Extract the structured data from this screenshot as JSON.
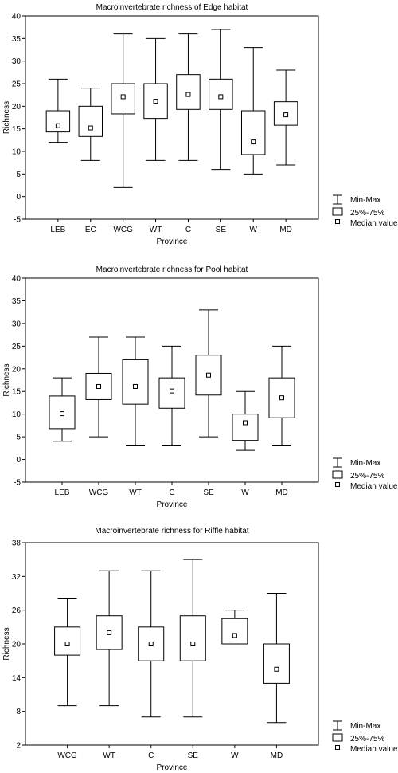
{
  "legend": {
    "minmax": "Min-Max",
    "iqr": "25%-75%",
    "median": "Median value"
  },
  "chart_data": [
    {
      "type": "box",
      "title": "Macroinvertebrate richness of Edge habitat",
      "xlabel": "Province",
      "ylabel": "Richness",
      "ylim": [
        -5,
        40
      ],
      "yticks": [
        -5,
        0,
        5,
        10,
        15,
        20,
        25,
        30,
        35,
        40
      ],
      "legend_position": "right-bottom",
      "grid": false,
      "categories": [
        "LEB",
        "EC",
        "WCG",
        "WT",
        "C",
        "SE",
        "W",
        "MD"
      ],
      "min": [
        12,
        8,
        2,
        8,
        8,
        6,
        5,
        7
      ],
      "q1": [
        14.3,
        13.3,
        18.3,
        17.3,
        19.3,
        19.3,
        9.3,
        15.8
      ],
      "median": [
        15.7,
        15.2,
        22.1,
        21.1,
        22.6,
        22.1,
        12.1,
        18.1
      ],
      "q3": [
        19,
        20,
        25,
        25,
        27,
        26,
        19,
        21
      ],
      "max": [
        26,
        24,
        36,
        35,
        36,
        37,
        33,
        28
      ]
    },
    {
      "type": "box",
      "title": "Macroinvertebrate richness for Pool habitat",
      "xlabel": "Province",
      "ylabel": "Richness",
      "ylim": [
        -5,
        40
      ],
      "yticks": [
        -5,
        0,
        5,
        10,
        15,
        20,
        25,
        30,
        35,
        40
      ],
      "legend_position": "right-bottom",
      "grid": false,
      "categories": [
        "LEB",
        "WCG",
        "WT",
        "C",
        "SE",
        "W",
        "MD"
      ],
      "min": [
        4,
        5,
        3,
        3,
        5,
        2,
        3
      ],
      "q1": [
        6.8,
        13.2,
        12.2,
        11.3,
        14.2,
        4.2,
        9.2
      ],
      "median": [
        10.1,
        16.1,
        16.1,
        15.1,
        18.6,
        8.1,
        13.6
      ],
      "q3": [
        14,
        19,
        22,
        18,
        23,
        10,
        18
      ],
      "max": [
        18,
        27,
        27,
        25,
        33,
        15,
        25
      ]
    },
    {
      "type": "box",
      "title": "Macroinvertebrate richness for Riffle habitat",
      "xlabel": "Province",
      "ylabel": "Richness",
      "ylim": [
        2,
        38
      ],
      "yticks": [
        2,
        8,
        14,
        20,
        26,
        32,
        38
      ],
      "legend_position": "right-bottom",
      "grid": false,
      "categories": [
        "WCG",
        "WT",
        "C",
        "SE",
        "W",
        "MD"
      ],
      "min": [
        9,
        9,
        7,
        7,
        20,
        6
      ],
      "q1": [
        18,
        19,
        17,
        17,
        20,
        13
      ],
      "median": [
        20,
        22,
        20,
        20,
        21.5,
        15.5
      ],
      "q3": [
        23,
        25,
        23,
        25,
        24.5,
        20
      ],
      "max": [
        28,
        33,
        33,
        35,
        26,
        29
      ]
    }
  ]
}
